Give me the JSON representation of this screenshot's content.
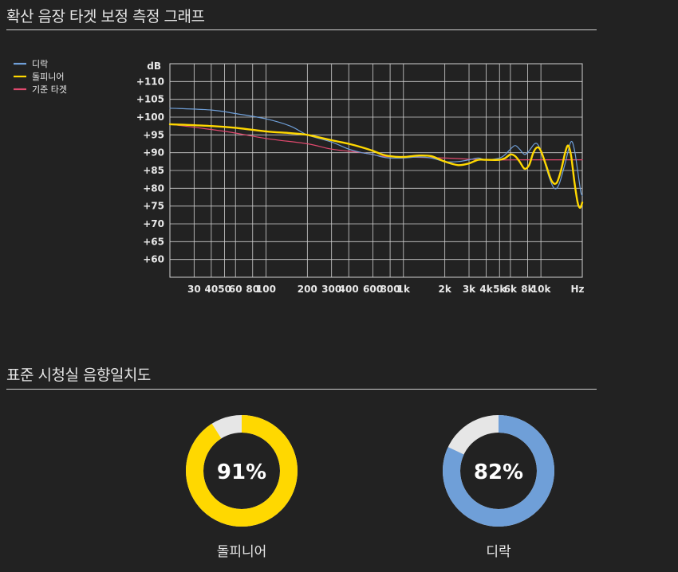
{
  "sections": {
    "fr_title": "확산 음장 타겟 보정 측정 그래프",
    "match_title": "표준 시청실 음향일치도"
  },
  "chart_data": [
    {
      "type": "line",
      "title": "",
      "xlabel": "Hz",
      "ylabel": "dB",
      "x_scale": "log",
      "xlim": [
        20,
        20000
      ],
      "ylim": [
        55,
        115
      ],
      "grid": true,
      "legend_position": "top-left",
      "x_ticks": [
        30,
        40,
        50,
        60,
        80,
        100,
        200,
        300,
        400,
        600,
        800,
        1000,
        2000,
        3000,
        4000,
        5000,
        6000,
        8000,
        10000
      ],
      "x_tick_labels": [
        "30",
        "40",
        "50",
        "60",
        "80",
        "100",
        "200",
        "300",
        "400",
        "600",
        "800",
        "1k",
        "2k",
        "3k",
        "4k",
        "5k",
        "6k",
        "8k",
        "10k"
      ],
      "y_ticks": [
        60,
        65,
        70,
        75,
        80,
        85,
        90,
        95,
        100,
        105,
        110
      ],
      "y_tick_labels": [
        "+60",
        "+65",
        "+70",
        "+75",
        "+80",
        "+85",
        "+90",
        "+95",
        "+100",
        "+105",
        "+110"
      ],
      "series": [
        {
          "name": "디락",
          "color": "#6f9fd8",
          "width": 1.2,
          "points": [
            [
              20,
              102.5
            ],
            [
              40,
              102
            ],
            [
              60,
              101
            ],
            [
              100,
              99.5
            ],
            [
              150,
              97.5
            ],
            [
              200,
              95
            ],
            [
              300,
              93
            ],
            [
              400,
              91
            ],
            [
              500,
              90
            ],
            [
              600,
              89.5
            ],
            [
              700,
              88.8
            ],
            [
              800,
              88.5
            ],
            [
              1000,
              88.5
            ],
            [
              1300,
              88.8
            ],
            [
              1600,
              88.5
            ],
            [
              2000,
              87.5
            ],
            [
              2500,
              87.5
            ],
            [
              3000,
              88
            ],
            [
              3500,
              88.5
            ],
            [
              4000,
              88
            ],
            [
              5000,
              88.5
            ],
            [
              5500,
              89.5
            ],
            [
              6000,
              91
            ],
            [
              6500,
              92
            ],
            [
              7000,
              91
            ],
            [
              7600,
              89.5
            ],
            [
              8200,
              90.5
            ],
            [
              9000,
              92.5
            ],
            [
              9600,
              92
            ],
            [
              10500,
              88
            ],
            [
              11500,
              83
            ],
            [
              12500,
              80
            ],
            [
              13500,
              81
            ],
            [
              15000,
              87
            ],
            [
              16500,
              93
            ],
            [
              17500,
              91
            ],
            [
              18500,
              85
            ],
            [
              19500,
              79
            ],
            [
              20000,
              78
            ]
          ]
        },
        {
          "name": "돌피니어",
          "color": "#ffd800",
          "width": 2.4,
          "points": [
            [
              20,
              98
            ],
            [
              40,
              97.5
            ],
            [
              60,
              97
            ],
            [
              100,
              96
            ],
            [
              150,
              95.5
            ],
            [
              200,
              95
            ],
            [
              300,
              93.5
            ],
            [
              400,
              92.5
            ],
            [
              500,
              91.5
            ],
            [
              600,
              90.5
            ],
            [
              700,
              89.5
            ],
            [
              800,
              89
            ],
            [
              1000,
              88.8
            ],
            [
              1300,
              89.2
            ],
            [
              1600,
              89
            ],
            [
              2000,
              87.5
            ],
            [
              2500,
              86.5
            ],
            [
              3000,
              87
            ],
            [
              3500,
              88
            ],
            [
              4000,
              88
            ],
            [
              5000,
              88
            ],
            [
              5500,
              88.5
            ],
            [
              6000,
              89.5
            ],
            [
              6500,
              89
            ],
            [
              7000,
              87.5
            ],
            [
              7600,
              85.5
            ],
            [
              8200,
              86.5
            ],
            [
              8800,
              90
            ],
            [
              9400,
              91.5
            ],
            [
              10000,
              90.5
            ],
            [
              11000,
              86
            ],
            [
              12000,
              82
            ],
            [
              13000,
              81.5
            ],
            [
              14000,
              85
            ],
            [
              15000,
              90
            ],
            [
              15800,
              92
            ],
            [
              16600,
              89
            ],
            [
              17500,
              82
            ],
            [
              18500,
              76
            ],
            [
              19300,
              74.5
            ],
            [
              20000,
              76
            ]
          ]
        },
        {
          "name": "기준 타겟",
          "color": "#e0496e",
          "width": 1.2,
          "points": [
            [
              20,
              98
            ],
            [
              50,
              96
            ],
            [
              100,
              94
            ],
            [
              200,
              92.5
            ],
            [
              300,
              91
            ],
            [
              500,
              90
            ],
            [
              700,
              89
            ],
            [
              1000,
              88.8
            ],
            [
              2000,
              88.5
            ],
            [
              4000,
              88
            ],
            [
              8000,
              88
            ],
            [
              20000,
              88
            ]
          ]
        }
      ]
    },
    {
      "type": "pie",
      "title": "",
      "subtype": "donut",
      "label": "91%",
      "value": 91,
      "name": "돌피니어",
      "color": "#ffd800"
    },
    {
      "type": "pie",
      "title": "",
      "subtype": "donut",
      "label": "82%",
      "value": 82,
      "name": "디락",
      "color": "#6f9fd8"
    }
  ]
}
